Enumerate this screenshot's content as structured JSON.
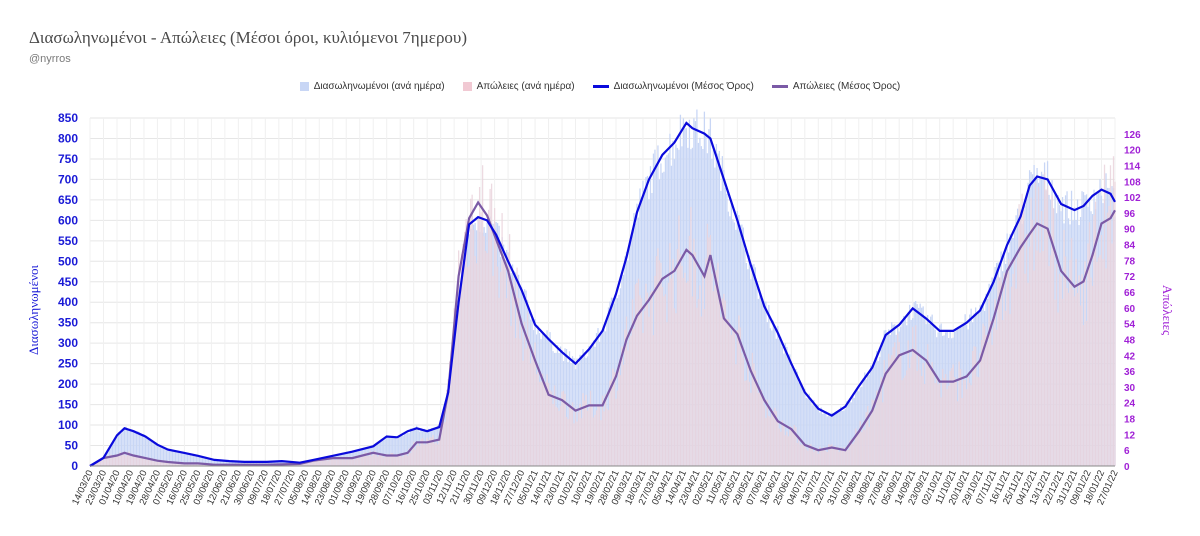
{
  "title": "Διασωληνωμένοι - Απώλειες (Μέσοι όροι, κυλιόμενοι 7ημερου)",
  "subtitle": "@nyrros",
  "legend": [
    {
      "label": "Διασωληνωμένοι (ανά ημέρα)",
      "kind": "box",
      "color": "#c8d6f5"
    },
    {
      "label": "Απώλειες (ανά ημέρα)",
      "kind": "box",
      "color": "#f1c9d3"
    },
    {
      "label": "Διασωληνωμένοι (Μέσος Όρος)",
      "kind": "line",
      "color": "#0a0adc"
    },
    {
      "label": "Απώλειες (Μέσος Όρος)",
      "kind": "line",
      "color": "#7b5aa6"
    }
  ],
  "colors": {
    "intubated_bar": "#c8d6f5",
    "deaths_bar": "#ead3dc",
    "intubated_line": "#0a0adc",
    "deaths_line": "#7b5aa6",
    "left_axis": "#1a1ad6",
    "right_axis": "#a020d6",
    "grid": "#e6e6e6"
  },
  "chart_data": {
    "type": "bar+line",
    "title": "Διασωληνωμένοι - Απώλειες (Μέσοι όροι, κυλιόμενοι 7ημερου)",
    "ylabel": "Διασωληνωμένοι",
    "y2label": "Απώλειες",
    "ylim": [
      0,
      850
    ],
    "y2lim": [
      0,
      132
    ],
    "yticks": [
      0,
      50,
      100,
      150,
      200,
      250,
      300,
      350,
      400,
      450,
      500,
      550,
      600,
      650,
      700,
      750,
      800,
      850
    ],
    "y2ticks": [
      0,
      6,
      12,
      18,
      24,
      30,
      36,
      42,
      48,
      54,
      60,
      66,
      72,
      78,
      84,
      90,
      96,
      102,
      108,
      114,
      120,
      126
    ],
    "grid": true,
    "legend_position": "top",
    "x_start": "2020-03-14",
    "x_end": "2022-01-27",
    "x_tick_labels": [
      "14/03/20",
      "23/03/20",
      "01/04/20",
      "10/04/20",
      "19/04/20",
      "28/04/20",
      "07/05/20",
      "16/05/20",
      "25/05/20",
      "03/06/20",
      "12/06/20",
      "21/06/20",
      "30/06/20",
      "09/07/20",
      "18/07/20",
      "27/07/20",
      "05/08/20",
      "14/08/20",
      "23/08/20",
      "01/09/20",
      "10/09/20",
      "19/09/20",
      "28/09/20",
      "07/10/20",
      "16/10/20",
      "25/10/20",
      "03/11/20",
      "12/11/20",
      "21/11/20",
      "30/11/20",
      "09/12/20",
      "18/12/20",
      "27/12/20",
      "05/01/21",
      "14/01/21",
      "23/01/21",
      "01/02/21",
      "10/02/21",
      "19/02/21",
      "28/02/21",
      "09/03/21",
      "18/03/21",
      "27/03/21",
      "05/04/21",
      "14/04/21",
      "23/04/21",
      "02/05/21",
      "11/05/21",
      "20/05/21",
      "29/05/21",
      "07/06/21",
      "16/06/21",
      "25/06/21",
      "04/07/21",
      "13/07/21",
      "22/07/21",
      "31/07/21",
      "09/08/21",
      "18/08/21",
      "27/08/21",
      "05/09/21",
      "14/09/21",
      "23/09/21",
      "02/10/21",
      "11/10/21",
      "20/10/21",
      "29/10/21",
      "07/11/21",
      "16/11/21",
      "25/11/21",
      "04/12/21",
      "13/12/21",
      "22/12/21",
      "31/12/21",
      "09/01/22",
      "18/01/22",
      "27/01/22"
    ],
    "series": [
      {
        "name": "Διασωληνωμένοι (Μέσος Όρος)",
        "axis": "left",
        "points": [
          [
            "2020-03-14",
            0
          ],
          [
            "2020-03-23",
            20
          ],
          [
            "2020-04-01",
            75
          ],
          [
            "2020-04-06",
            92
          ],
          [
            "2020-04-12",
            85
          ],
          [
            "2020-04-20",
            72
          ],
          [
            "2020-04-28",
            52
          ],
          [
            "2020-05-05",
            40
          ],
          [
            "2020-05-16",
            32
          ],
          [
            "2020-05-25",
            25
          ],
          [
            "2020-06-05",
            15
          ],
          [
            "2020-06-15",
            12
          ],
          [
            "2020-06-25",
            10
          ],
          [
            "2020-07-10",
            10
          ],
          [
            "2020-07-20",
            12
          ],
          [
            "2020-08-01",
            8
          ],
          [
            "2020-08-10",
            15
          ],
          [
            "2020-08-23",
            25
          ],
          [
            "2020-09-05",
            35
          ],
          [
            "2020-09-19",
            48
          ],
          [
            "2020-09-28",
            72
          ],
          [
            "2020-10-05",
            70
          ],
          [
            "2020-10-12",
            85
          ],
          [
            "2020-10-18",
            92
          ],
          [
            "2020-10-25",
            85
          ],
          [
            "2020-11-02",
            95
          ],
          [
            "2020-11-08",
            180
          ],
          [
            "2020-11-15",
            400
          ],
          [
            "2020-11-22",
            590
          ],
          [
            "2020-11-28",
            608
          ],
          [
            "2020-12-04",
            600
          ],
          [
            "2020-12-10",
            565
          ],
          [
            "2020-12-18",
            500
          ],
          [
            "2020-12-27",
            430
          ],
          [
            "2021-01-05",
            345
          ],
          [
            "2021-01-14",
            310
          ],
          [
            "2021-01-23",
            278
          ],
          [
            "2021-02-01",
            250
          ],
          [
            "2021-02-10",
            285
          ],
          [
            "2021-02-19",
            330
          ],
          [
            "2021-02-28",
            420
          ],
          [
            "2021-03-07",
            510
          ],
          [
            "2021-03-14",
            620
          ],
          [
            "2021-03-22",
            700
          ],
          [
            "2021-03-31",
            760
          ],
          [
            "2021-04-08",
            790
          ],
          [
            "2021-04-16",
            838
          ],
          [
            "2021-04-20",
            825
          ],
          [
            "2021-04-28",
            812
          ],
          [
            "2021-05-02",
            800
          ],
          [
            "2021-05-11",
            700
          ],
          [
            "2021-05-20",
            600
          ],
          [
            "2021-05-29",
            490
          ],
          [
            "2021-06-07",
            390
          ],
          [
            "2021-06-16",
            325
          ],
          [
            "2021-06-25",
            250
          ],
          [
            "2021-07-04",
            180
          ],
          [
            "2021-07-13",
            140
          ],
          [
            "2021-07-22",
            123
          ],
          [
            "2021-07-31",
            145
          ],
          [
            "2021-08-09",
            195
          ],
          [
            "2021-08-18",
            240
          ],
          [
            "2021-08-27",
            320
          ],
          [
            "2021-09-05",
            345
          ],
          [
            "2021-09-14",
            385
          ],
          [
            "2021-09-23",
            360
          ],
          [
            "2021-10-02",
            330
          ],
          [
            "2021-10-11",
            330
          ],
          [
            "2021-10-20",
            350
          ],
          [
            "2021-10-29",
            380
          ],
          [
            "2021-11-07",
            450
          ],
          [
            "2021-11-16",
            540
          ],
          [
            "2021-11-25",
            610
          ],
          [
            "2021-12-01",
            685
          ],
          [
            "2021-12-06",
            707
          ],
          [
            "2021-12-13",
            700
          ],
          [
            "2021-12-22",
            640
          ],
          [
            "2021-12-31",
            625
          ],
          [
            "2022-01-06",
            635
          ],
          [
            "2022-01-12",
            660
          ],
          [
            "2022-01-18",
            675
          ],
          [
            "2022-01-24",
            665
          ],
          [
            "2022-01-27",
            645
          ]
        ]
      },
      {
        "name": "Απώλειες (Μέσος Όρος)",
        "axis": "right",
        "points": [
          [
            "2020-03-14",
            0
          ],
          [
            "2020-03-23",
            3
          ],
          [
            "2020-04-01",
            4
          ],
          [
            "2020-04-06",
            5
          ],
          [
            "2020-04-12",
            4
          ],
          [
            "2020-04-20",
            3
          ],
          [
            "2020-04-28",
            2
          ],
          [
            "2020-05-05",
            1.5
          ],
          [
            "2020-05-16",
            1
          ],
          [
            "2020-05-25",
            1
          ],
          [
            "2020-06-05",
            0.5
          ],
          [
            "2020-06-15",
            0.5
          ],
          [
            "2020-06-25",
            0.5
          ],
          [
            "2020-07-10",
            0.5
          ],
          [
            "2020-07-20",
            0.6
          ],
          [
            "2020-08-01",
            0.8
          ],
          [
            "2020-08-10",
            2
          ],
          [
            "2020-08-23",
            3
          ],
          [
            "2020-09-05",
            3
          ],
          [
            "2020-09-19",
            5
          ],
          [
            "2020-09-28",
            4
          ],
          [
            "2020-10-05",
            4
          ],
          [
            "2020-10-12",
            5
          ],
          [
            "2020-10-18",
            9
          ],
          [
            "2020-10-25",
            9
          ],
          [
            "2020-11-02",
            10
          ],
          [
            "2020-11-08",
            28
          ],
          [
            "2020-11-15",
            72
          ],
          [
            "2020-11-22",
            94
          ],
          [
            "2020-11-28",
            100
          ],
          [
            "2020-12-04",
            95
          ],
          [
            "2020-12-10",
            86
          ],
          [
            "2020-12-18",
            74
          ],
          [
            "2020-12-27",
            54
          ],
          [
            "2021-01-05",
            40
          ],
          [
            "2021-01-14",
            27
          ],
          [
            "2021-01-23",
            25
          ],
          [
            "2021-02-01",
            21
          ],
          [
            "2021-02-10",
            23
          ],
          [
            "2021-02-19",
            23
          ],
          [
            "2021-02-28",
            34
          ],
          [
            "2021-03-07",
            48
          ],
          [
            "2021-03-14",
            57
          ],
          [
            "2021-03-22",
            63
          ],
          [
            "2021-03-31",
            71
          ],
          [
            "2021-04-08",
            74
          ],
          [
            "2021-04-16",
            82
          ],
          [
            "2021-04-20",
            80
          ],
          [
            "2021-04-28",
            72
          ],
          [
            "2021-05-02",
            80
          ],
          [
            "2021-05-11",
            56
          ],
          [
            "2021-05-20",
            50
          ],
          [
            "2021-05-29",
            36
          ],
          [
            "2021-06-07",
            25
          ],
          [
            "2021-06-16",
            17
          ],
          [
            "2021-06-25",
            14
          ],
          [
            "2021-07-04",
            8
          ],
          [
            "2021-07-13",
            6
          ],
          [
            "2021-07-22",
            7
          ],
          [
            "2021-07-31",
            6
          ],
          [
            "2021-08-09",
            13
          ],
          [
            "2021-08-18",
            21
          ],
          [
            "2021-08-27",
            35
          ],
          [
            "2021-09-05",
            42
          ],
          [
            "2021-09-14",
            44
          ],
          [
            "2021-09-23",
            40
          ],
          [
            "2021-10-02",
            32
          ],
          [
            "2021-10-11",
            32
          ],
          [
            "2021-10-20",
            34
          ],
          [
            "2021-10-29",
            40
          ],
          [
            "2021-11-07",
            56
          ],
          [
            "2021-11-16",
            74
          ],
          [
            "2021-11-25",
            83
          ],
          [
            "2021-12-01",
            88
          ],
          [
            "2021-12-06",
            92
          ],
          [
            "2021-12-13",
            90
          ],
          [
            "2021-12-22",
            74
          ],
          [
            "2021-12-31",
            68
          ],
          [
            "2022-01-06",
            70
          ],
          [
            "2022-01-12",
            80
          ],
          [
            "2022-01-18",
            92
          ],
          [
            "2022-01-24",
            94
          ],
          [
            "2022-01-27",
            97
          ]
        ]
      }
    ],
    "bar_series": [
      {
        "name": "Διασωληνωμένοι (ανά ημέρα)",
        "axis": "left",
        "follows": "Διασωληνωμένοι (Μέσος Όρος)"
      },
      {
        "name": "Απώλειες (ανά ημέρα)",
        "axis": "right",
        "follows": "Απώλειες (Μέσος Όρος)"
      }
    ]
  }
}
